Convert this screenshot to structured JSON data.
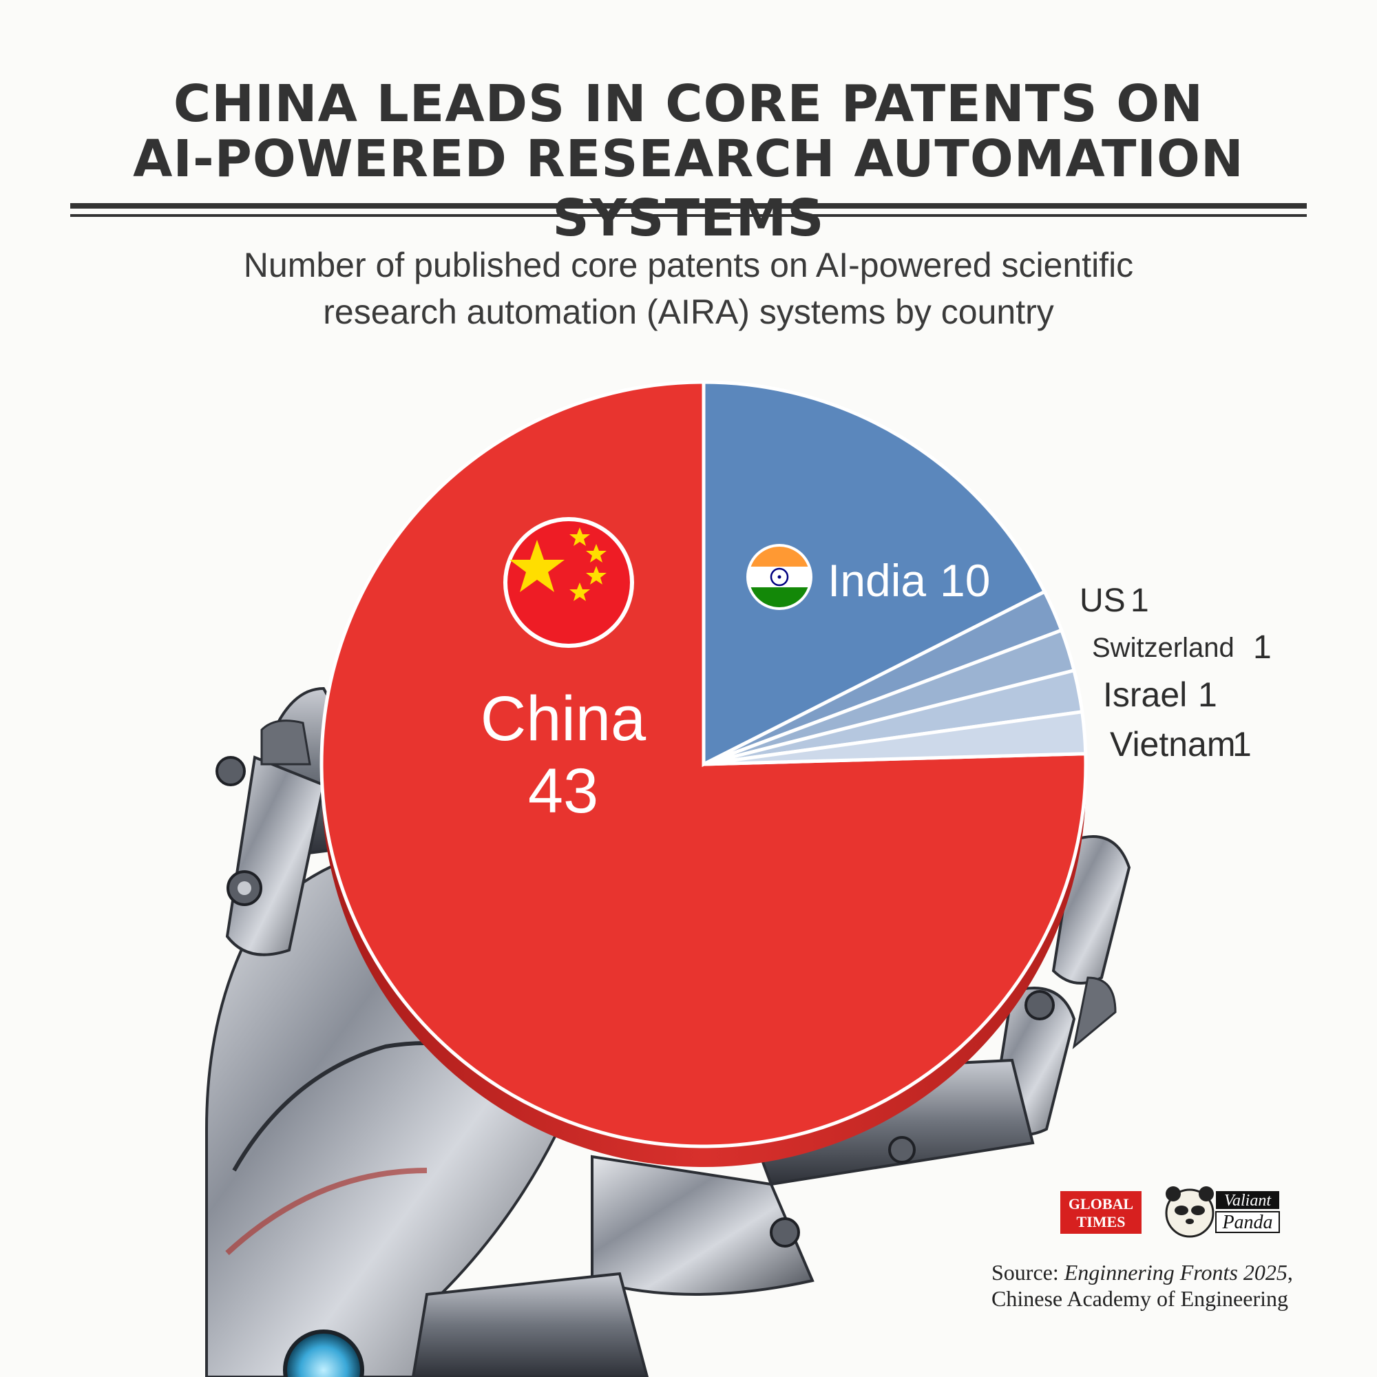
{
  "title": {
    "line1": "CHINA LEADS IN CORE PATENTS ON",
    "line2": "AI-POWERED RESEARCH AUTOMATION SYSTEMS"
  },
  "subtitle": {
    "line1": "Number of published core patents on AI-powered scientific",
    "line2": "research automation (AIRA) systems by country"
  },
  "chart_data": {
    "type": "pie",
    "categories": [
      "China",
      "India",
      "US",
      "Switzerland",
      "Israel",
      "Vietnam"
    ],
    "values": [
      43,
      10,
      1,
      1,
      1,
      1
    ],
    "colors": [
      "#e8342f",
      "#5b87bc",
      "#7d9dc6",
      "#9bb3d2",
      "#b5c7df",
      "#cdd9ea"
    ],
    "value_labels": [
      "43",
      "10",
      "1",
      "1",
      "1",
      "1"
    ]
  },
  "source": {
    "prefix": "Source: ",
    "publication": "Enginnering Fronts 2025",
    "suffix": ",",
    "line2": "Chinese Academy of Engineering"
  },
  "logos": {
    "global_times_top": "GLOBAL",
    "global_times_bottom": "TIMES",
    "valiant_panda_top": "Valiant",
    "valiant_panda_bottom": "Panda"
  },
  "icons": {
    "china": "china-flag-icon",
    "india": "india-flag-icon",
    "hand": "robot-hand-icon",
    "panda": "panda-icon"
  }
}
